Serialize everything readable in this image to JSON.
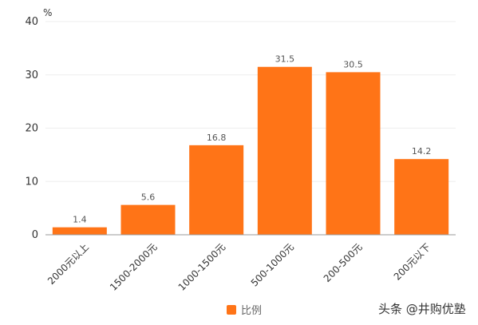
{
  "chart_data": {
    "type": "bar",
    "unit_label": "%",
    "categories": [
      "2000元以上",
      "1500-2000元",
      "1000-1500元",
      "500-1000元",
      "200-500元",
      "200元以下"
    ],
    "series": [
      {
        "name": "比例",
        "values": [
          1.4,
          5.6,
          16.8,
          31.5,
          30.5,
          14.2
        ],
        "data_labels": [
          "1.4",
          "5.6",
          "16.8",
          "31.5",
          "30.5",
          "14.2"
        ]
      }
    ],
    "yticks": [
      "0",
      "10",
      "20",
      "30",
      "40"
    ],
    "ylim": [
      0,
      40
    ],
    "grid": true,
    "legend_position": "bottom",
    "colors": {
      "bar": "#FF7417",
      "axis": "#999999",
      "grid": "#EEEEEE"
    }
  },
  "watermark": "头条 @井购优塾"
}
